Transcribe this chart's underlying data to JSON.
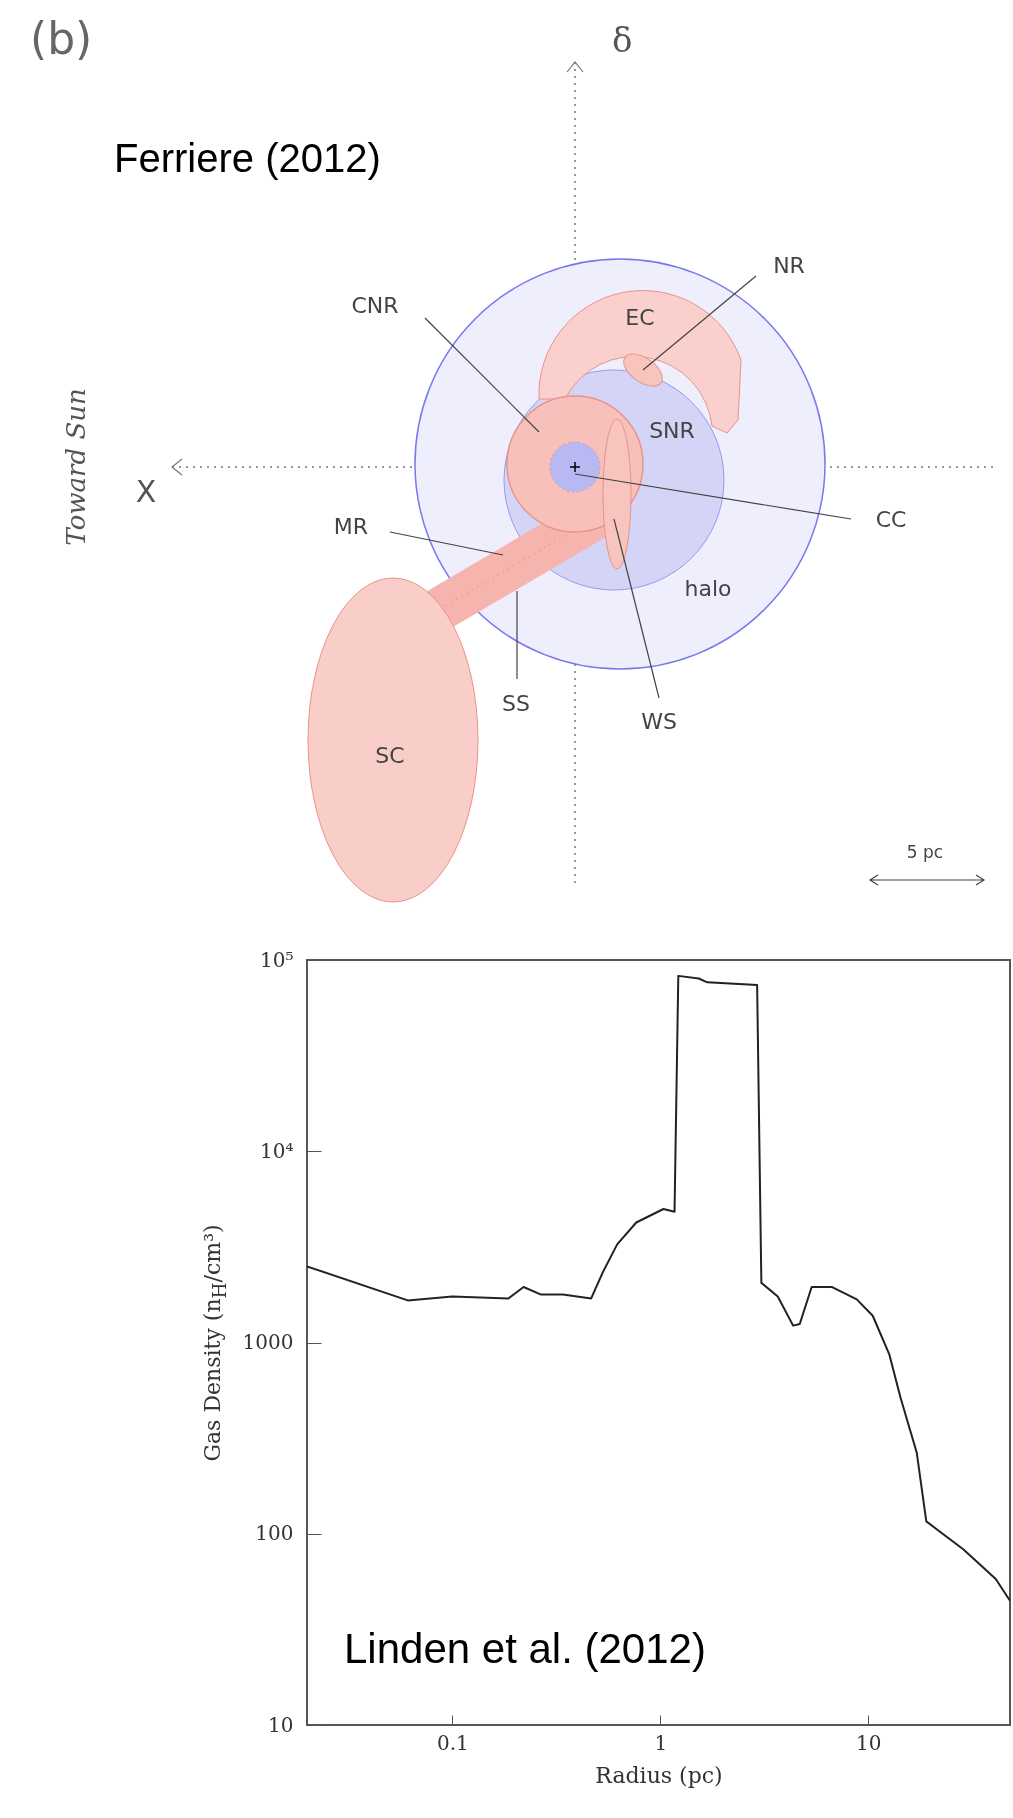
{
  "chart_data": [
    {
      "type": "other",
      "title": "(b)",
      "annotations": [
        "Ferriere (2012)",
        "δ",
        "X",
        "Toward Sun",
        "CNR",
        "EC",
        "NR",
        "SNR",
        "CC",
        "MR",
        "halo",
        "SS",
        "WS",
        "SC",
        "5 pc"
      ]
    },
    {
      "type": "line",
      "xlabel": "Radius (pc)",
      "ylabel": "Gas Density (n$_{H}$/cm³)",
      "log": "xy",
      "xlim": [
        0.02,
        48
      ],
      "ylim": [
        10,
        100000
      ],
      "xticks": [
        0.1,
        1,
        10
      ],
      "yticks": [
        10,
        100,
        1000,
        {
          "value": 10000,
          "label": "10⁴"
        },
        {
          "value": 100000,
          "label": "10⁵"
        }
      ],
      "grid": false,
      "annotations": [
        "Linden et al. (2012)"
      ],
      "series": [
        {
          "color": "#222222",
          "x": [
            0.02,
            0.061,
            0.1,
            0.186,
            0.22,
            0.267,
            0.34,
            0.465,
            0.53,
            0.62,
            0.766,
            1.035,
            1.17,
            1.22,
            1.53,
            1.68,
            2.92,
            3.06,
            3.67,
            4.35,
            4.68,
            5.34,
            6.7,
            8.8,
            10.5,
            12.6,
            14.3,
            17.1,
            19.0,
            28.6,
            41,
            48
          ],
          "values": [
            2500,
            1660,
            1740,
            1700,
            1950,
            1780,
            1780,
            1700,
            2340,
            3260,
            4240,
            4990,
            4830,
            82600,
            80000,
            76400,
            74000,
            2050,
            1740,
            1225,
            1250,
            1950,
            1950,
            1680,
            1380,
            870,
            513,
            265,
            116,
            83,
            58,
            44.6
          ]
        }
      ]
    }
  ]
}
